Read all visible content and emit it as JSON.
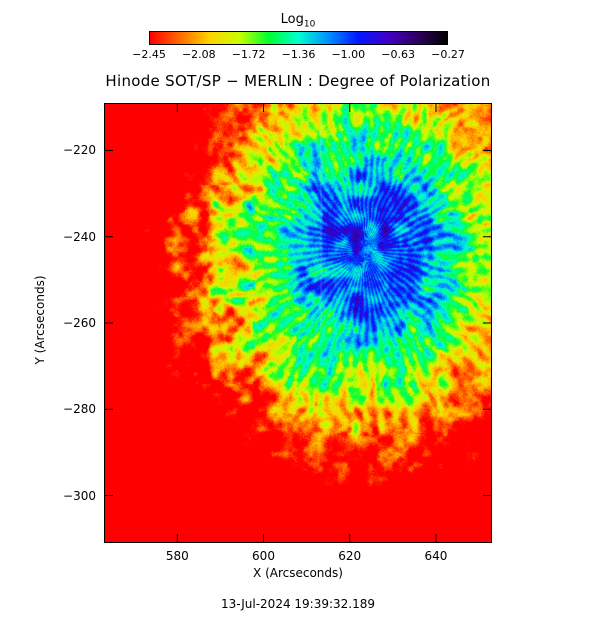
{
  "colorbar": {
    "title": "Log",
    "title_subscript": "10",
    "tick_labels": [
      "−2.45",
      "−2.08",
      "−1.72",
      "−1.36",
      "−1.00",
      "−0.63",
      "−0.27"
    ],
    "colors": [
      "#ff0000",
      "#ff6a00",
      "#ffd200",
      "#c8ff00",
      "#00ff30",
      "#00ffd0",
      "#0090ff",
      "#0018ff",
      "#4000c8",
      "#300060",
      "#000000"
    ]
  },
  "chart_data": {
    "type": "heatmap",
    "title": "Hinode SOT/SP − MERLIN : Degree of Polarization",
    "xlabel": "X (Arcseconds)",
    "ylabel": "Y (Arcseconds)",
    "xlim": [
      563,
      653
    ],
    "ylim": [
      -311,
      -209
    ],
    "xticks": [
      580,
      600,
      620,
      640
    ],
    "yticks": [
      -300,
      -280,
      -260,
      -240,
      -220
    ],
    "color_scale": "log10",
    "color_range": [
      -2.45,
      -0.27
    ],
    "description_of_structure": {
      "umbra_center": [
        623,
        -243
      ],
      "penumbra_extent_x": [
        596,
        637
      ],
      "penumbra_extent_y": [
        -270,
        -215
      ]
    }
  },
  "timestamp": "13-Jul-2024 19:39:32.189"
}
